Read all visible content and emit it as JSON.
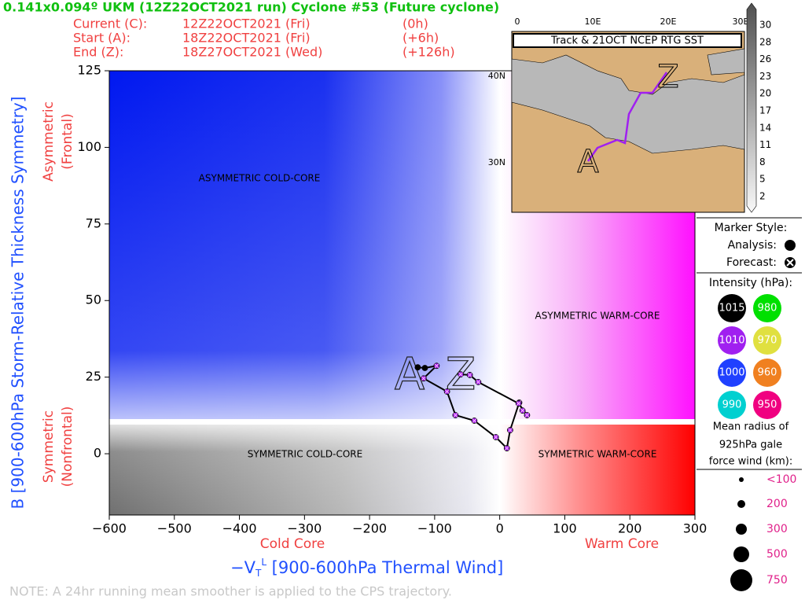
{
  "chart_data": {
    "type": "line",
    "title": "0.141x0.094º UKM (12Z22OCT2021 run) Cyclone #53 (Future cyclone)",
    "info": [
      [
        "Current (C):",
        "12Z22OCT2021 (Fri)",
        "(0h)"
      ],
      [
        "Start (A):",
        "18Z22OCT2021 (Fri)",
        "(+6h)"
      ],
      [
        "End (Z):",
        "18Z27OCT2021 (Wed)",
        "(+126h)"
      ]
    ],
    "y_label": "B [900-600hPa Storm-Relative Thickness Symmetry]",
    "y_side_labels": [
      [
        "Asymmetric",
        "(Frontal)"
      ],
      [
        "Symmetric",
        "(Nonfrontal)"
      ]
    ],
    "x_label": {
      "symbol": "−V",
      "sub": "T",
      "sup": "L",
      "text": " [900-600hPa Thermal Wind]"
    },
    "x_side_labels": [
      "Cold Core",
      "Warm Core"
    ],
    "regions": [
      "ASYMMETRIC COLD-CORE",
      "ASYMMETRIC WARM-CORE",
      "SYMMETRIC COLD-CORE",
      "SYMMETRIC WARM-CORE"
    ],
    "start_label": "A",
    "end_label": "Z",
    "note": "NOTE:  A 24hr running mean smoother is applied to the CPS trajectory.",
    "xlim": [
      -600,
      300
    ],
    "ylim": [
      -20,
      125
    ],
    "xticks": [
      {
        "value": -600,
        "label": "−600"
      },
      {
        "value": -500,
        "label": "−500"
      },
      {
        "value": -400,
        "label": "−400"
      },
      {
        "value": -300,
        "label": "−300"
      },
      {
        "value": -200,
        "label": "−200"
      },
      {
        "value": -100,
        "label": "−100"
      },
      0,
      100,
      200,
      300
    ],
    "yticks": [
      0,
      25,
      50,
      75,
      100,
      125
    ],
    "series": [
      {
        "color": "#000000",
        "point_colors": [
          "#000000",
          "#000000",
          "#a020f0",
          "#a020f0",
          "#a020f0",
          "#a020f0",
          "#a020f0",
          "#a020f0",
          "#a020f0",
          "#a020f0",
          "#a020f0",
          "#a020f0",
          "#a020f0",
          "#a020f0",
          "#a020f0",
          "#a020f0",
          "#a020f0"
        ],
        "x": [
          -126,
          -115,
          -97,
          -117,
          -81,
          -68,
          -39,
          -6,
          11,
          16,
          30,
          35,
          42,
          29,
          -33,
          -46,
          -60
        ],
        "values": [
          28.2,
          28,
          28.7,
          24.6,
          20.3,
          12.6,
          10.8,
          5.4,
          1.8,
          7.7,
          16.7,
          14.1,
          12.6,
          16.4,
          23.4,
          25.7,
          25.9
        ]
      }
    ],
    "inset": {
      "title": "Track & 21OCT NCEP RTG SST",
      "lon_ticks": [
        "0",
        "10E",
        "20E",
        "30E"
      ],
      "lat_ticks": [
        "40N",
        "30N"
      ],
      "start_label": "A",
      "end_label": "Z",
      "colorbar_ticks": [
        30,
        28,
        26,
        23,
        20,
        17,
        14,
        11,
        8,
        5,
        2
      ]
    },
    "legend": {
      "marker_title": "Marker Style:",
      "analysis": "Analysis:",
      "forecast": "Forecast:",
      "intensity_title": "Intensity (hPa):",
      "intensity": [
        {
          "label": "1015",
          "color": "#000000"
        },
        {
          "label": "980",
          "color": "#00e000"
        },
        {
          "label": "1010",
          "color": "#a020f0"
        },
        {
          "label": "970",
          "color": "#e0e040"
        },
        {
          "label": "1000",
          "color": "#2040ff"
        },
        {
          "label": "960",
          "color": "#f08020"
        },
        {
          "label": "990",
          "color": "#00d0d0"
        },
        {
          "label": "950",
          "color": "#f00080"
        }
      ],
      "radius_title": [
        "Mean radius of",
        "925hPa gale",
        "force wind (km):"
      ],
      "radius": [
        "<100",
        "200",
        "300",
        "500",
        "750"
      ]
    }
  }
}
